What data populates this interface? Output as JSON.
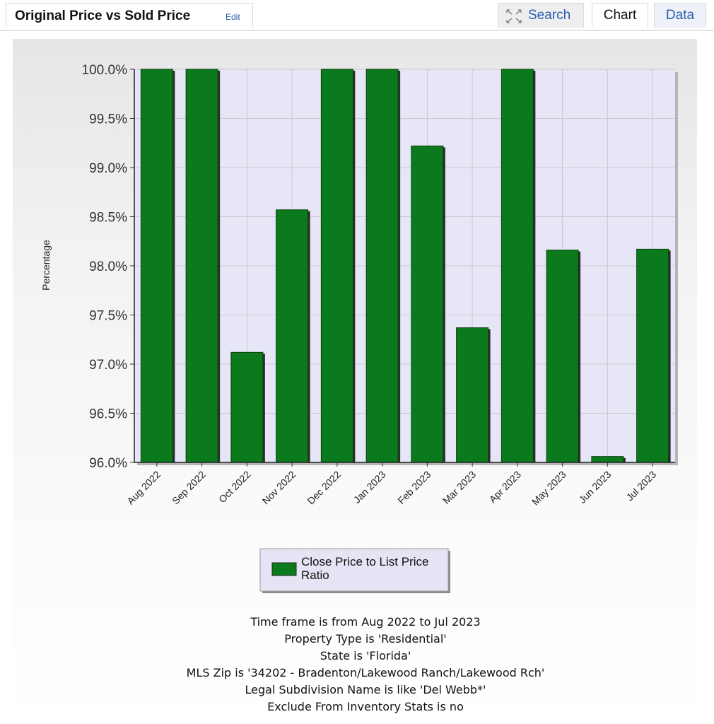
{
  "header": {
    "title": "Original Price vs Sold Price",
    "edit_label": "Edit",
    "search_label": "Search",
    "search_icon": "expand-arrows-icon",
    "chart_tab": "Chart",
    "data_tab": "Data"
  },
  "colors": {
    "bar_fill": "#0a7a1c",
    "bar_stroke": "#0b3d0b",
    "plot_bg": "#e6e6f7",
    "link": "#2a5db0"
  },
  "chart_data": {
    "type": "bar",
    "title": "",
    "xlabel": "",
    "ylabel": "Percentage",
    "ylim": [
      96.0,
      100.0
    ],
    "yticks": [
      "100.0%",
      "99.5%",
      "99.0%",
      "98.5%",
      "98.0%",
      "97.5%",
      "97.0%",
      "96.5%",
      "96.0%"
    ],
    "grid": true,
    "legend_position": "bottom-center",
    "categories": [
      "Aug 2022",
      "Sep 2022",
      "Oct 2022",
      "Nov 2022",
      "Dec 2022",
      "Jan 2023",
      "Feb 2023",
      "Mar 2023",
      "Apr 2023",
      "May 2023",
      "Jun 2023",
      "Jul 2023"
    ],
    "series": [
      {
        "name": "Close Price to List Price Ratio",
        "values": [
          100.0,
          100.0,
          97.12,
          98.57,
          100.0,
          100.0,
          99.22,
          97.37,
          100.0,
          98.16,
          96.06,
          98.17
        ]
      }
    ]
  },
  "caption_lines": [
    "Time frame is from Aug 2022 to Jul 2023",
    "Property Type is 'Residential'",
    "State is 'Florida'",
    "MLS Zip is '34202 - Bradenton/Lakewood Ranch/Lakewood Rch'",
    "Legal Subdivision Name is like 'Del Webb*'",
    "Exclude From Inventory Stats is no"
  ]
}
